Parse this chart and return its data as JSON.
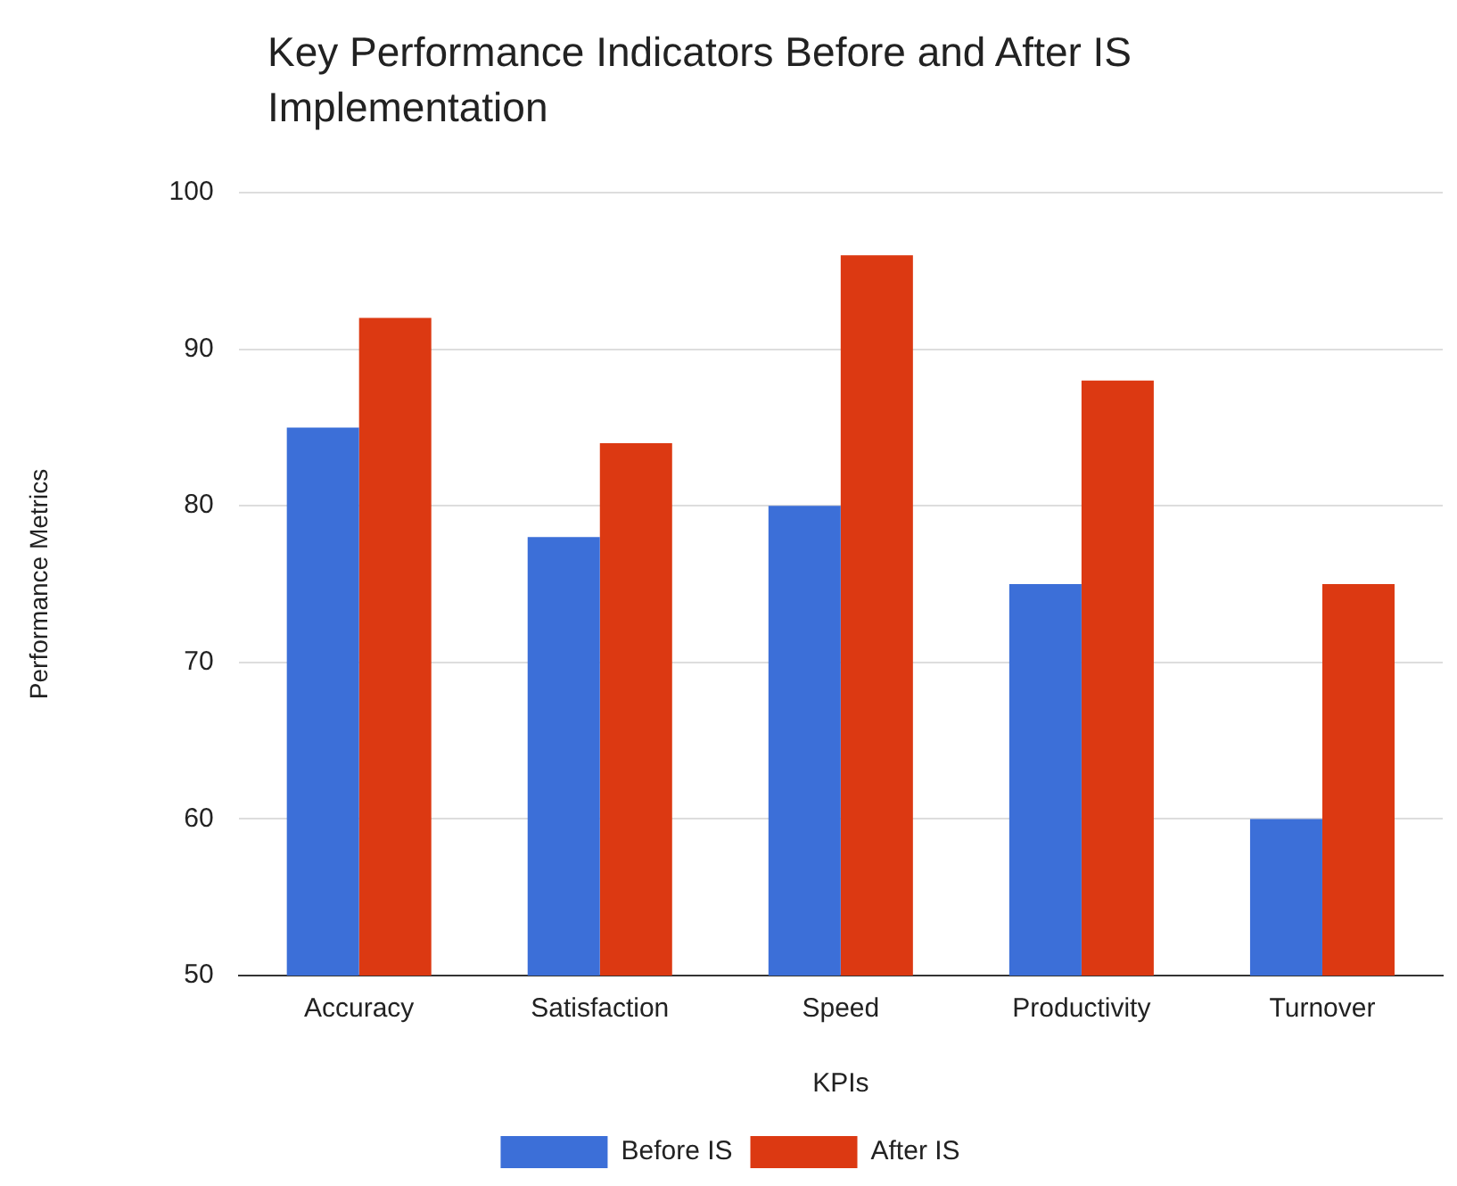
{
  "chart_data": {
    "type": "bar",
    "title": "Key Performance Indicators Before and After IS Implementation",
    "xlabel": "KPIs",
    "ylabel": "Performance Metrics",
    "categories": [
      "Accuracy",
      "Satisfaction",
      "Speed",
      "Productivity",
      "Turnover"
    ],
    "series": [
      {
        "name": "Before IS",
        "color": "#3c6fd8",
        "values": [
          85,
          78,
          80,
          75,
          60
        ]
      },
      {
        "name": "After IS",
        "color": "#dc3912",
        "values": [
          92,
          84,
          96,
          88,
          75
        ]
      }
    ],
    "ylim": [
      50,
      100
    ],
    "yticks": [
      50,
      60,
      70,
      80,
      90,
      100
    ],
    "grid": "y",
    "legend": "bottom"
  }
}
